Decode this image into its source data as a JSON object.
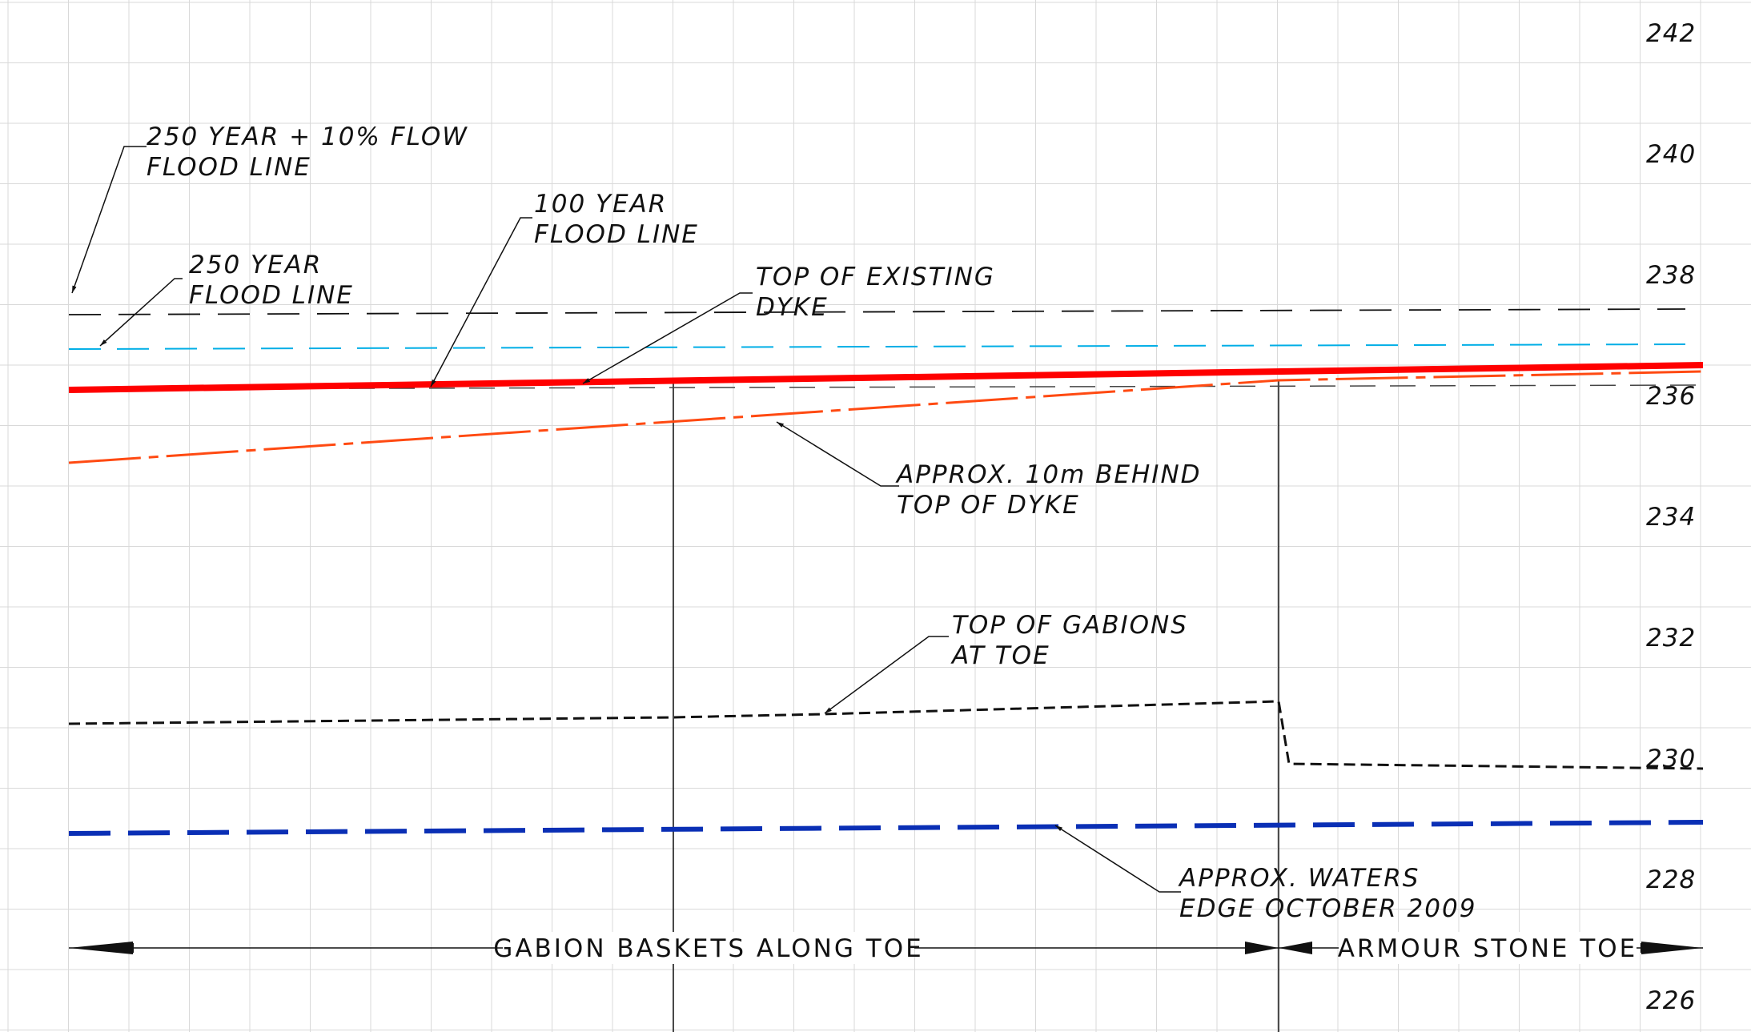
{
  "elevation_axis": [
    "242",
    "240",
    "238",
    "236",
    "234",
    "232",
    "230",
    "228",
    "226"
  ],
  "annotations": {
    "flow_flood_line": [
      "250 YEAR + 10% FLOW",
      "FLOOD LINE"
    ],
    "flood_250": [
      "250 YEAR",
      "FLOOD LINE"
    ],
    "flood_100": [
      "100 YEAR",
      "FLOOD LINE"
    ],
    "top_existing_dyke": [
      "TOP OF EXISTING",
      "DYKE"
    ],
    "behind_dyke": [
      "APPROX. 10m BEHIND",
      "TOP OF  DYKE"
    ],
    "top_gabions": [
      "TOP OF GABIONS",
      "AT TOE"
    ],
    "waters_edge": [
      "APPROX. WATERS",
      "EDGE OCTOBER 2009"
    ]
  },
  "spans": {
    "gabion": "GABION BASKETS ALONG TOE",
    "armour": "ARMOUR STONE TOE"
  },
  "colors": {
    "grid": "#d9d9d9",
    "flood_line_red": "#ff0000",
    "behind_dyke_orange": "#ff4a12",
    "flood_250_cyan": "#00aee6",
    "waters_edge_blue": "#0a2fb5",
    "ink": "#111111"
  }
}
